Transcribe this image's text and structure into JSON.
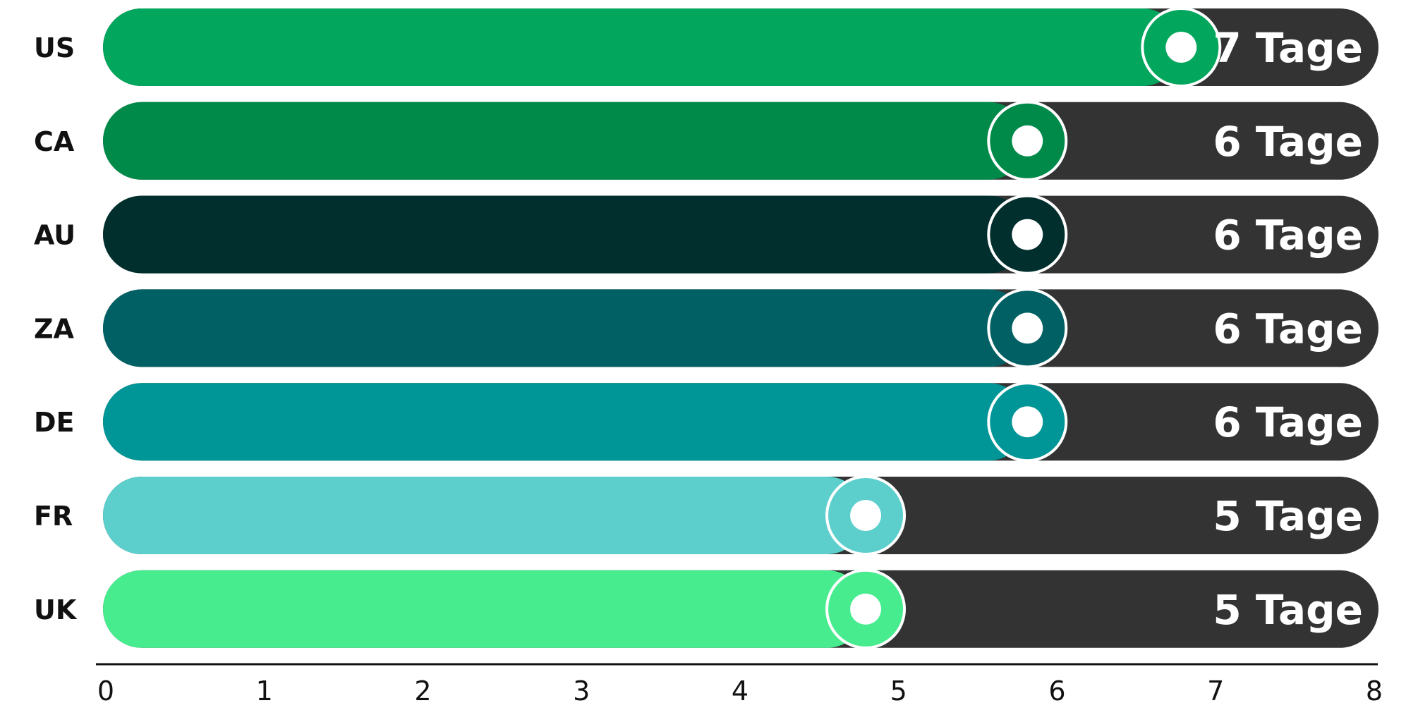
{
  "chart_data": {
    "type": "bar",
    "orientation": "horizontal",
    "categories": [
      "US",
      "CA",
      "AU",
      "ZA",
      "DE",
      "FR",
      "UK"
    ],
    "values": [
      6.8,
      5.83,
      5.83,
      5.83,
      5.83,
      4.81,
      4.81
    ],
    "value_labels": [
      "7 Tage",
      "6 Tage",
      "6 Tage",
      "6 Tage",
      "6 Tage",
      "5 Tage",
      "5 Tage"
    ],
    "colors": [
      "#02a65c",
      "#008a4a",
      "#012f2e",
      "#006063",
      "#009596",
      "#5ccfcd",
      "#47ec8f"
    ],
    "track_color": "#333333",
    "xlim": [
      0,
      8
    ],
    "xticks": [
      "0",
      "1",
      "2",
      "3",
      "4",
      "5",
      "6",
      "7",
      "8"
    ],
    "grid": false,
    "legend": false
  }
}
